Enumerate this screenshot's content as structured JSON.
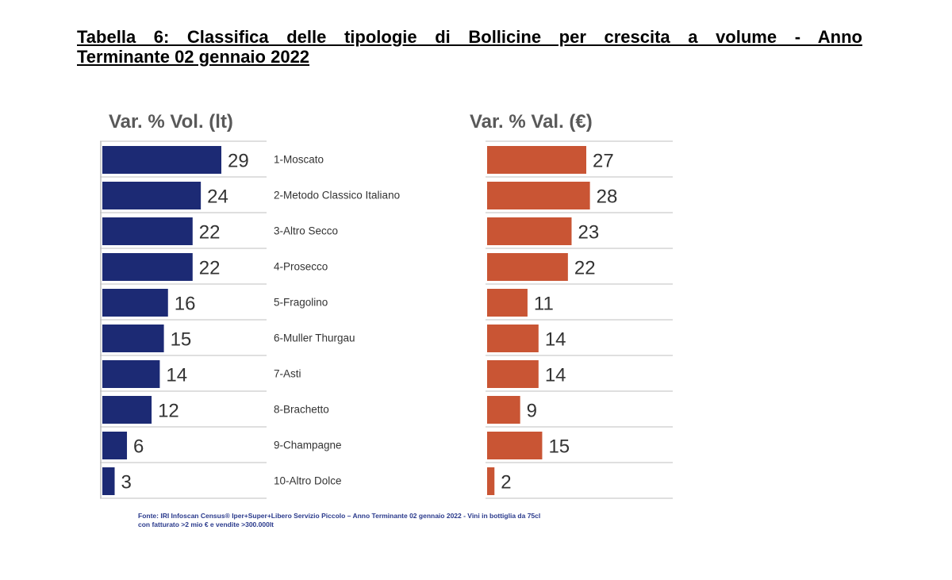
{
  "title": {
    "line1": "Tabella 6: Classifica delle tipologie di Bollicine per crescita a volume - Anno",
    "line2": "Terminante 02 gennaio 2022"
  },
  "colors": {
    "volume_bar": "#1c2a74",
    "value_bar": "#c95534",
    "header_text": "#595959",
    "label_text": "#333333",
    "gridline": "#bfbfbf",
    "footnote_text": "#2a3a8c"
  },
  "chart_data": [
    {
      "type": "bar",
      "orientation": "horizontal",
      "title": "Var. % Vol. (lt)",
      "categories": [
        "1-Moscato",
        "2-Metodo Classico Italiano",
        "3-Altro Secco",
        "4-Prosecco",
        "5-Fragolino",
        "6-Muller Thurgau",
        "7-Asti",
        "8-Brachetto",
        "9-Champagne",
        "10-Altro Dolce"
      ],
      "values": [
        29,
        24,
        22,
        22,
        16,
        15,
        14,
        12,
        6,
        3
      ],
      "xlim": [
        0,
        29
      ]
    },
    {
      "type": "bar",
      "orientation": "horizontal",
      "title": "Var. % Val. (€)",
      "categories": [
        "1-Moscato",
        "2-Metodo Classico Italiano",
        "3-Altro Secco",
        "4-Prosecco",
        "5-Fragolino",
        "6-Muller Thurgau",
        "7-Asti",
        "8-Brachetto",
        "9-Champagne",
        "10-Altro Dolce"
      ],
      "values": [
        27,
        28,
        23,
        22,
        11,
        14,
        14,
        9,
        15,
        2
      ],
      "xlim": [
        0,
        27
      ]
    }
  ],
  "footnote": {
    "line1": "Fonte: IRI Infoscan Census® Iper+Super+Libero Servizio Piccolo – Anno Terminante 02 gennaio 2022 - Vini in bottiglia da 75cl",
    "line2": "con fatturato >2 mio € e vendite >300.000lt"
  }
}
